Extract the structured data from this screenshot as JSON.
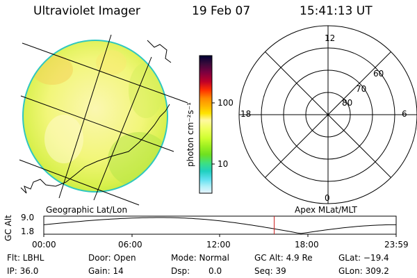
{
  "header": {
    "title": "Ultraviolet Imager",
    "date": "19 Feb 07",
    "time": "15:41:13 UT"
  },
  "colorbar": {
    "unit_label": "photon cm⁻²s⁻¹",
    "ticks": [
      "100",
      "10"
    ],
    "colors_top_to_bottom": [
      "#000033",
      "#3a0a3a",
      "#7a0040",
      "#c00028",
      "#ff3000",
      "#ff8a00",
      "#ffb800",
      "#ffe400",
      "#fff8a0",
      "#f0ff60",
      "#cfff30",
      "#9cef20",
      "#6ee020",
      "#3ee080",
      "#20d0c0",
      "#60e0f0",
      "#b0f0f8",
      "#e8f4ff"
    ]
  },
  "left_panel": {
    "caption": "Geographic Lat/Lon"
  },
  "right_panel": {
    "caption": "Apex MLat/MLT",
    "mlt_labels": {
      "top": "12",
      "left": "18",
      "right": "6",
      "bottom": "0"
    },
    "lat_labels": [
      "60",
      "70",
      "80"
    ]
  },
  "altitude_plot": {
    "ylabel": "GC Alt",
    "y_ticks": [
      "9.0",
      "1.8"
    ],
    "x_ticks": [
      "00:00",
      "06:00",
      "12:00",
      "18:00",
      "23:59"
    ],
    "ylim": [
      1.8,
      9.0
    ],
    "current_time_hours": 15.69
  },
  "footer": {
    "flt": "Flt: LBHL",
    "ip": "IP: 36.0",
    "door": "Door: Open",
    "gain": "Gain: 14",
    "mode": "Mode: Normal",
    "dsp_label": "Dsp:",
    "dsp_value": "0.0",
    "gc_alt": "GC Alt: 4.9 Re",
    "seq": "Seq: 39",
    "glat": "GLat: −19.4",
    "glon": "GLon: 309.2"
  }
}
